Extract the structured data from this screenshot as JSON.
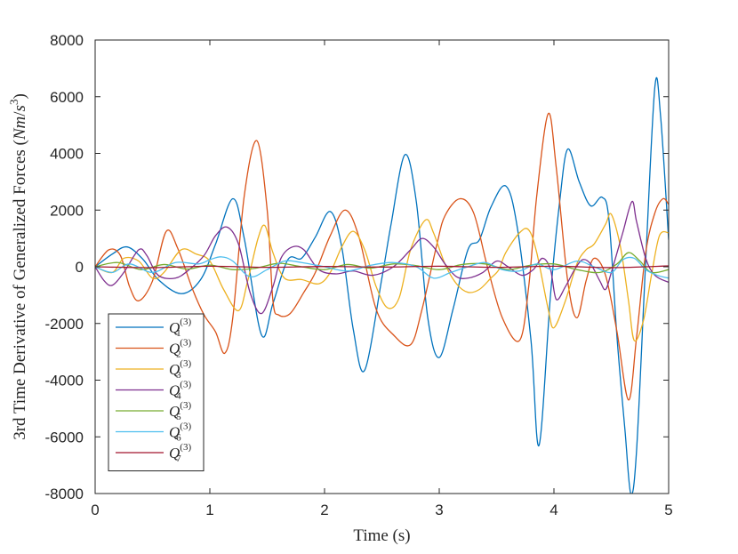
{
  "chart_data": {
    "type": "line",
    "xlabel": "Time (s)",
    "ylabel": "3rd Time Derivative of Generalized Forces (Nm/s³)",
    "xlim": [
      0,
      5
    ],
    "ylim": [
      -8000,
      8000
    ],
    "xticks": [
      0,
      1,
      2,
      3,
      4,
      5
    ],
    "yticks": [
      -8000,
      -6000,
      -4000,
      -2000,
      0,
      2000,
      4000,
      6000,
      8000
    ],
    "xtick_labels": [
      "0",
      "1",
      "2",
      "3",
      "4",
      "5"
    ],
    "ytick_labels": [
      "-8000",
      "-6000",
      "-4000",
      "-2000",
      "0",
      "2000",
      "4000",
      "6000",
      "8000"
    ],
    "grid": false,
    "legend_position": "bottom-left",
    "series": [
      {
        "name": "Q1(3)",
        "base": "Q",
        "sub": "1",
        "sup": "(3)",
        "color": "#0072BD",
        "points": [
          [
            0,
            0
          ],
          [
            0.15,
            450
          ],
          [
            0.28,
            700
          ],
          [
            0.42,
            250
          ],
          [
            0.55,
            -450
          ],
          [
            0.75,
            -950
          ],
          [
            0.92,
            -450
          ],
          [
            1.05,
            800
          ],
          [
            1.2,
            2400
          ],
          [
            1.3,
            1000
          ],
          [
            1.45,
            -2400
          ],
          [
            1.55,
            -1300
          ],
          [
            1.68,
            250
          ],
          [
            1.8,
            300
          ],
          [
            1.92,
            1050
          ],
          [
            2.05,
            1950
          ],
          [
            2.15,
            700
          ],
          [
            2.25,
            -2200
          ],
          [
            2.35,
            -3650
          ],
          [
            2.5,
            -400
          ],
          [
            2.58,
            1500
          ],
          [
            2.7,
            3950
          ],
          [
            2.8,
            2300
          ],
          [
            2.9,
            -1800
          ],
          [
            3.0,
            -3200
          ],
          [
            3.12,
            -1500
          ],
          [
            3.25,
            600
          ],
          [
            3.35,
            950
          ],
          [
            3.45,
            2100
          ],
          [
            3.58,
            2850
          ],
          [
            3.68,
            1400
          ],
          [
            3.8,
            -2600
          ],
          [
            3.87,
            -6300
          ],
          [
            3.97,
            -1000
          ],
          [
            4.05,
            2300
          ],
          [
            4.12,
            4150
          ],
          [
            4.22,
            3000
          ],
          [
            4.32,
            2150
          ],
          [
            4.42,
            2450
          ],
          [
            4.48,
            1650
          ],
          [
            4.55,
            -2500
          ],
          [
            4.62,
            -5800
          ],
          [
            4.67,
            -8000
          ],
          [
            4.72,
            -6500
          ],
          [
            4.8,
            200
          ],
          [
            4.88,
            6350
          ],
          [
            4.93,
            5300
          ],
          [
            5.0,
            950
          ]
        ]
      },
      {
        "name": "Q2(3)",
        "base": "Q",
        "sub": "2",
        "sup": "(3)",
        "color": "#D95319",
        "points": [
          [
            0,
            0
          ],
          [
            0.12,
            600
          ],
          [
            0.22,
            400
          ],
          [
            0.3,
            -700
          ],
          [
            0.38,
            -1200
          ],
          [
            0.5,
            -500
          ],
          [
            0.62,
            1250
          ],
          [
            0.72,
            650
          ],
          [
            0.85,
            -800
          ],
          [
            0.95,
            -1700
          ],
          [
            1.05,
            -2300
          ],
          [
            1.13,
            -3050
          ],
          [
            1.2,
            -1800
          ],
          [
            1.3,
            2500
          ],
          [
            1.41,
            4450
          ],
          [
            1.5,
            2000
          ],
          [
            1.55,
            -1200
          ],
          [
            1.6,
            -1700
          ],
          [
            1.7,
            -1650
          ],
          [
            1.82,
            -900
          ],
          [
            1.92,
            -200
          ],
          [
            2.05,
            1100
          ],
          [
            2.18,
            2000
          ],
          [
            2.3,
            1050
          ],
          [
            2.45,
            -1500
          ],
          [
            2.6,
            -2400
          ],
          [
            2.75,
            -2750
          ],
          [
            2.85,
            -1500
          ],
          [
            2.98,
            800
          ],
          [
            3.05,
            1800
          ],
          [
            3.18,
            2400
          ],
          [
            3.3,
            1900
          ],
          [
            3.42,
            0
          ],
          [
            3.55,
            -1800
          ],
          [
            3.7,
            -2600
          ],
          [
            3.78,
            -700
          ],
          [
            3.85,
            2500
          ],
          [
            3.95,
            5400
          ],
          [
            4.02,
            3500
          ],
          [
            4.12,
            -500
          ],
          [
            4.2,
            -1800
          ],
          [
            4.28,
            -500
          ],
          [
            4.35,
            300
          ],
          [
            4.45,
            -300
          ],
          [
            4.55,
            -2300
          ],
          [
            4.65,
            -4700
          ],
          [
            4.72,
            -2500
          ],
          [
            4.8,
            500
          ],
          [
            4.88,
            1900
          ],
          [
            4.95,
            2400
          ],
          [
            5.0,
            2200
          ]
        ]
      },
      {
        "name": "Q3(3)",
        "base": "Q",
        "sub": "3",
        "sup": "(3)",
        "color": "#EDB120",
        "points": [
          [
            0,
            0
          ],
          [
            0.15,
            -200
          ],
          [
            0.25,
            300
          ],
          [
            0.38,
            200
          ],
          [
            0.5,
            -400
          ],
          [
            0.6,
            -200
          ],
          [
            0.75,
            600
          ],
          [
            0.88,
            450
          ],
          [
            1.0,
            200
          ],
          [
            1.12,
            -800
          ],
          [
            1.25,
            -1550
          ],
          [
            1.33,
            -500
          ],
          [
            1.42,
            1000
          ],
          [
            1.48,
            1450
          ],
          [
            1.55,
            500
          ],
          [
            1.65,
            -400
          ],
          [
            1.8,
            -450
          ],
          [
            1.95,
            -600
          ],
          [
            2.05,
            -200
          ],
          [
            2.15,
            700
          ],
          [
            2.25,
            1250
          ],
          [
            2.35,
            600
          ],
          [
            2.45,
            -700
          ],
          [
            2.55,
            -1450
          ],
          [
            2.65,
            -1100
          ],
          [
            2.75,
            600
          ],
          [
            2.88,
            1650
          ],
          [
            2.95,
            1200
          ],
          [
            3.05,
            100
          ],
          [
            3.15,
            -600
          ],
          [
            3.25,
            -900
          ],
          [
            3.35,
            -800
          ],
          [
            3.45,
            -400
          ],
          [
            3.52,
            -100
          ],
          [
            3.58,
            500
          ],
          [
            3.7,
            1200
          ],
          [
            3.78,
            1300
          ],
          [
            3.85,
            500
          ],
          [
            3.95,
            -1500
          ],
          [
            4.0,
            -2150
          ],
          [
            4.1,
            -1200
          ],
          [
            4.2,
            100
          ],
          [
            4.28,
            600
          ],
          [
            4.35,
            800
          ],
          [
            4.45,
            1500
          ],
          [
            4.5,
            1850
          ],
          [
            4.58,
            700
          ],
          [
            4.65,
            -1200
          ],
          [
            4.7,
            -2600
          ],
          [
            4.78,
            -1900
          ],
          [
            4.85,
            -300
          ],
          [
            4.92,
            1100
          ],
          [
            5.0,
            1200
          ]
        ]
      },
      {
        "name": "Q4(3)",
        "base": "Q",
        "sub": "4",
        "sup": "(3)",
        "color": "#7E2F8E",
        "points": [
          [
            0,
            0
          ],
          [
            0.08,
            -500
          ],
          [
            0.15,
            -650
          ],
          [
            0.25,
            -200
          ],
          [
            0.38,
            600
          ],
          [
            0.45,
            400
          ],
          [
            0.55,
            -300
          ],
          [
            0.7,
            -400
          ],
          [
            0.82,
            -100
          ],
          [
            0.95,
            400
          ],
          [
            1.05,
            1100
          ],
          [
            1.15,
            1400
          ],
          [
            1.25,
            800
          ],
          [
            1.35,
            -900
          ],
          [
            1.45,
            -1650
          ],
          [
            1.55,
            -700
          ],
          [
            1.62,
            300
          ],
          [
            1.72,
            700
          ],
          [
            1.82,
            600
          ],
          [
            1.95,
            -100
          ],
          [
            2.1,
            -250
          ],
          [
            2.25,
            -150
          ],
          [
            2.42,
            -300
          ],
          [
            2.6,
            0
          ],
          [
            2.75,
            600
          ],
          [
            2.85,
            1000
          ],
          [
            2.95,
            700
          ],
          [
            3.05,
            100
          ],
          [
            3.15,
            -350
          ],
          [
            3.25,
            -400
          ],
          [
            3.38,
            -200
          ],
          [
            3.5,
            200
          ],
          [
            3.6,
            0
          ],
          [
            3.72,
            -300
          ],
          [
            3.82,
            -100
          ],
          [
            3.9,
            300
          ],
          [
            3.97,
            -100
          ],
          [
            4.02,
            -1150
          ],
          [
            4.1,
            -700
          ],
          [
            4.18,
            -100
          ],
          [
            4.25,
            250
          ],
          [
            4.32,
            100
          ],
          [
            4.4,
            -500
          ],
          [
            4.45,
            -800
          ],
          [
            4.5,
            -200
          ],
          [
            4.6,
            1200
          ],
          [
            4.68,
            2300
          ],
          [
            4.72,
            1600
          ],
          [
            4.8,
            300
          ],
          [
            4.88,
            -300
          ],
          [
            5.0,
            -550
          ]
        ]
      },
      {
        "name": "Q5(3)",
        "base": "Q",
        "sub": "5",
        "sup": "(3)",
        "color": "#77AC30",
        "points": [
          [
            0,
            0
          ],
          [
            0.2,
            150
          ],
          [
            0.4,
            -100
          ],
          [
            0.6,
            80
          ],
          [
            0.8,
            -80
          ],
          [
            1.0,
            60
          ],
          [
            1.2,
            -100
          ],
          [
            1.4,
            -50
          ],
          [
            1.6,
            120
          ],
          [
            1.8,
            0
          ],
          [
            2.0,
            -100
          ],
          [
            2.2,
            80
          ],
          [
            2.4,
            -50
          ],
          [
            2.6,
            100
          ],
          [
            2.8,
            40
          ],
          [
            3.0,
            -100
          ],
          [
            3.2,
            80
          ],
          [
            3.4,
            100
          ],
          [
            3.6,
            -100
          ],
          [
            3.8,
            60
          ],
          [
            4.0,
            100
          ],
          [
            4.2,
            -100
          ],
          [
            4.4,
            -200
          ],
          [
            4.55,
            100
          ],
          [
            4.65,
            500
          ],
          [
            4.75,
            200
          ],
          [
            4.85,
            -200
          ],
          [
            5.0,
            -100
          ]
        ]
      },
      {
        "name": "Q6(3)",
        "base": "Q",
        "sub": "6",
        "sup": "(3)",
        "color": "#4DBEEE",
        "points": [
          [
            0,
            0
          ],
          [
            0.15,
            -200
          ],
          [
            0.3,
            100
          ],
          [
            0.5,
            -200
          ],
          [
            0.7,
            150
          ],
          [
            0.9,
            100
          ],
          [
            1.0,
            250
          ],
          [
            1.1,
            350
          ],
          [
            1.2,
            200
          ],
          [
            1.35,
            -350
          ],
          [
            1.5,
            -100
          ],
          [
            1.65,
            200
          ],
          [
            1.8,
            150
          ],
          [
            2.0,
            0
          ],
          [
            2.2,
            -150
          ],
          [
            2.4,
            50
          ],
          [
            2.6,
            150
          ],
          [
            2.8,
            0
          ],
          [
            2.95,
            -400
          ],
          [
            3.1,
            -200
          ],
          [
            3.25,
            0
          ],
          [
            3.4,
            150
          ],
          [
            3.55,
            -100
          ],
          [
            3.7,
            -150
          ],
          [
            3.85,
            100
          ],
          [
            4.0,
            -100
          ],
          [
            4.2,
            200
          ],
          [
            4.35,
            0
          ],
          [
            4.5,
            -200
          ],
          [
            4.6,
            250
          ],
          [
            4.7,
            300
          ],
          [
            4.8,
            -100
          ],
          [
            4.9,
            -300
          ],
          [
            5.0,
            -400
          ]
        ]
      },
      {
        "name": "Q7(3)",
        "base": "Q",
        "sub": "7",
        "sup": "(3)",
        "color": "#A2142F",
        "points": [
          [
            0,
            0
          ],
          [
            0.5,
            -30
          ],
          [
            1.0,
            20
          ],
          [
            1.5,
            -20
          ],
          [
            2.0,
            10
          ],
          [
            2.5,
            -10
          ],
          [
            3.0,
            20
          ],
          [
            3.5,
            -20
          ],
          [
            4.0,
            20
          ],
          [
            4.5,
            -30
          ],
          [
            5.0,
            30
          ]
        ]
      }
    ]
  }
}
